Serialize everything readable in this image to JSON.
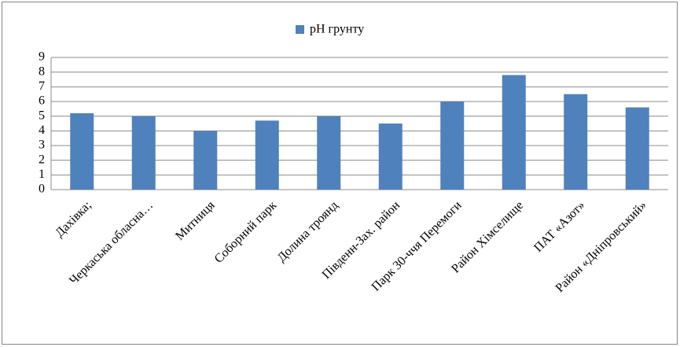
{
  "chart_data": {
    "type": "bar",
    "legend_label": "pH грунту",
    "categories": [
      "Дахівка;",
      "Черкаська обласна…",
      "Митниця",
      "Соборний парк",
      "Долина троянд",
      "Південн-Зах. район",
      "Парк 30-ччя Перемоги",
      "Район Хімселище",
      "ПАТ «Азот»",
      "Район «Дніпровський»"
    ],
    "values": [
      5.2,
      5.0,
      4.0,
      4.7,
      5.0,
      4.5,
      6.0,
      7.8,
      6.5,
      5.6
    ],
    "color": "#4f81bd",
    "ylim": [
      0,
      9
    ],
    "yticks": [
      0,
      1,
      2,
      3,
      4,
      5,
      6,
      7,
      8,
      9
    ],
    "grid": true,
    "legend": "top"
  }
}
